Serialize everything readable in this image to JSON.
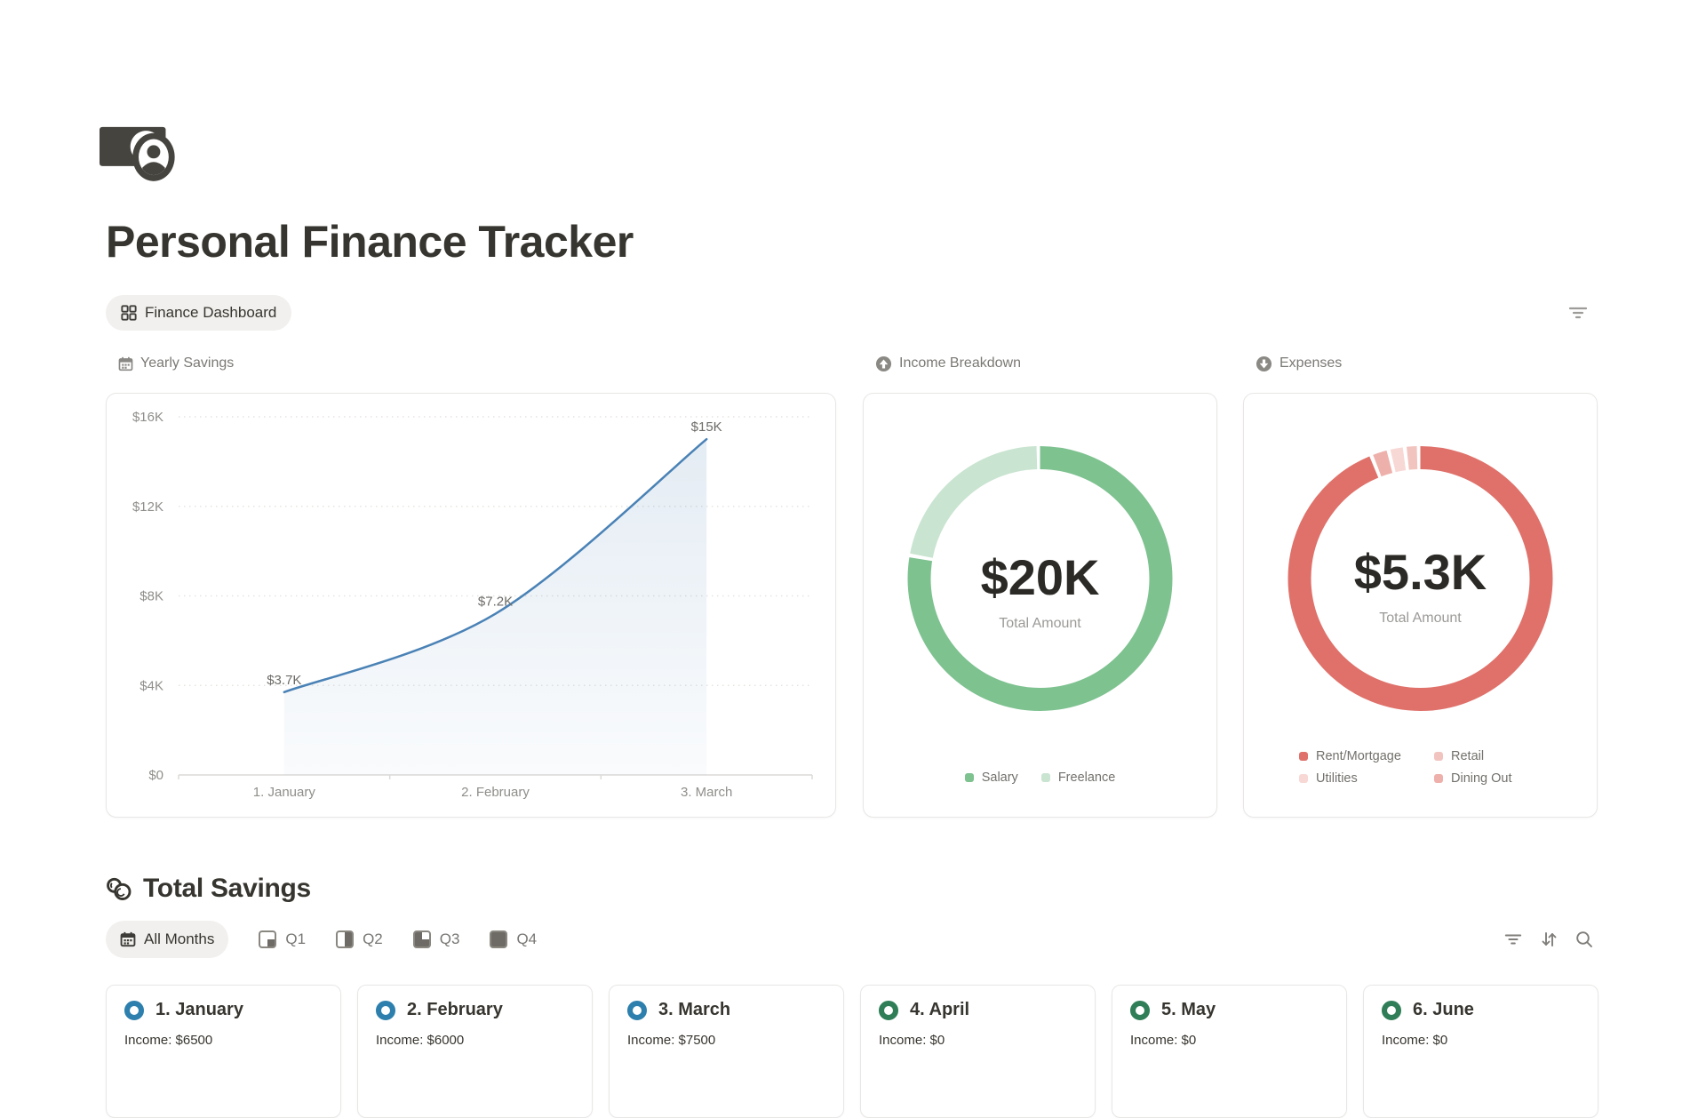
{
  "page": {
    "title": "Personal Finance Tracker"
  },
  "view_bar": {
    "active_view": "Finance Dashboard"
  },
  "total_savings": {
    "title": "Total Savings",
    "tabs": [
      {
        "label": "All Months",
        "active": true
      },
      {
        "label": "Q1",
        "active": false
      },
      {
        "label": "Q2",
        "active": false
      },
      {
        "label": "Q3",
        "active": false
      },
      {
        "label": "Q4",
        "active": false
      }
    ]
  },
  "month_cards": [
    {
      "label": "1. January",
      "income": "Income: $6500",
      "accent": "#2d7fad"
    },
    {
      "label": "2. February",
      "income": "Income: $6000",
      "accent": "#2d7fad"
    },
    {
      "label": "3. March",
      "income": "Income: $7500",
      "accent": "#2d7fad"
    },
    {
      "label": "4. April",
      "income": "Income: $0",
      "accent": "#2f7e57"
    },
    {
      "label": "5. May",
      "income": "Income: $0",
      "accent": "#2f7e57"
    },
    {
      "label": "6. June",
      "income": "Income: $0",
      "accent": "#2f7e57"
    }
  ],
  "chart_data": [
    {
      "type": "line",
      "title": "Yearly Savings",
      "x": [
        "1. January",
        "2. February",
        "3. March"
      ],
      "values": [
        3700,
        7200,
        15000
      ],
      "point_labels": [
        "$3.7K",
        "$7.2K",
        "$15K"
      ],
      "y_ticks": [
        0,
        4000,
        8000,
        12000,
        16000
      ],
      "y_tick_labels": [
        "$0",
        "$4K",
        "$8K",
        "$12K",
        "$16K"
      ],
      "ylim": [
        0,
        16000
      ],
      "grid": "horizontal-dotted",
      "legend_position": "none",
      "line_color": "#4a82b6",
      "area_fill": true
    },
    {
      "type": "donut",
      "title": "Income Breakdown",
      "center_value": "$20K",
      "center_label": "Total Amount",
      "series": [
        {
          "name": "Salary",
          "value": 15600,
          "color": "#7ec290"
        },
        {
          "name": "Freelance",
          "value": 4400,
          "color": "#c9e4d0"
        }
      ],
      "legend_order": [
        0,
        1
      ],
      "legend_position": "bottom"
    },
    {
      "type": "donut",
      "title": "Expenses",
      "center_value": "$5.3K",
      "center_label": "Total Amount",
      "series": [
        {
          "name": "Rent/Mortgage",
          "value": 4990,
          "color": "#df716a"
        },
        {
          "name": "Dining Out",
          "value": 115,
          "color": "#eeb0aa"
        },
        {
          "name": "Utilities",
          "value": 105,
          "color": "#f7d8d5"
        },
        {
          "name": "Retail",
          "value": 90,
          "color": "#f2c4bf"
        }
      ],
      "legend_order": [
        0,
        3,
        2,
        1
      ],
      "legend_position": "bottom",
      "legend_columns": 2
    }
  ]
}
